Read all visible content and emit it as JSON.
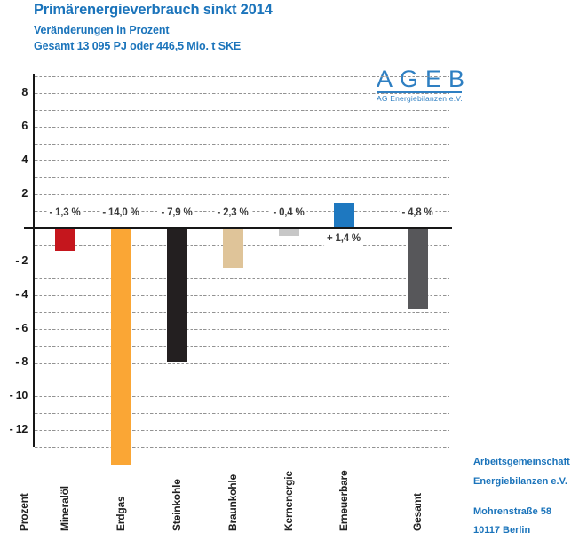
{
  "header": {
    "title": "Primärenergieverbrauch sinkt 2014",
    "subtitle1": "Veränderungen in Prozent",
    "subtitle2": "Gesamt 13 095 PJ oder 446,5 Mio. t SKE"
  },
  "logo": {
    "letters": "AGEB",
    "tagline": "AG Energiebilanzen e.V."
  },
  "address": {
    "lines_top": [
      "Arbeitsgemeinschaft",
      "Energiebilanzen e.V."
    ],
    "lines_bottom": [
      "Mohrenstraße 58",
      "10117 Berlin"
    ]
  },
  "chart_data": {
    "type": "bar",
    "title": "Primärenergieverbrauch sinkt 2014",
    "subtitle": "Veränderungen in Prozent",
    "note": "Gesamt 13 095 PJ oder 446,5 Mio. t SKE",
    "unit_label": "Prozent",
    "categories": [
      "Mineralöl",
      "Erdgas",
      "Steinkohle",
      "Braunkohle",
      "Kernenergie",
      "Erneuerbare",
      "Gesamt"
    ],
    "values": [
      -1.3,
      -14.0,
      -7.9,
      -2.3,
      -0.4,
      1.4,
      -4.8
    ],
    "value_labels": [
      "- 1,3 %",
      "- 14,0 %",
      "- 7,9 %",
      "- 2,3 %",
      "- 0,4 %",
      "+ 1,4 %",
      "- 4,8 %"
    ],
    "bar_colors": [
      "#c5161d",
      "#faa635",
      "#231f20",
      "#dfc499",
      "#c7c7c7",
      "#1e78c0",
      "#57575a"
    ],
    "ylim": [
      -14.5,
      9.3
    ],
    "ytick_values": [
      8,
      6,
      4,
      2,
      -2,
      -4,
      -6,
      -8,
      -10,
      -12
    ],
    "ytick_labels": [
      "8",
      "6",
      "4",
      "2",
      "- 2",
      "- 4",
      "- 6",
      "- 8",
      "- 10",
      "- 12"
    ],
    "gridline_min": -13,
    "gridline_max": 9,
    "gridline_step": 1,
    "grid": "dotted horizontal, every 1 unit",
    "legend": "none",
    "accent_color": "#1b74bb"
  }
}
